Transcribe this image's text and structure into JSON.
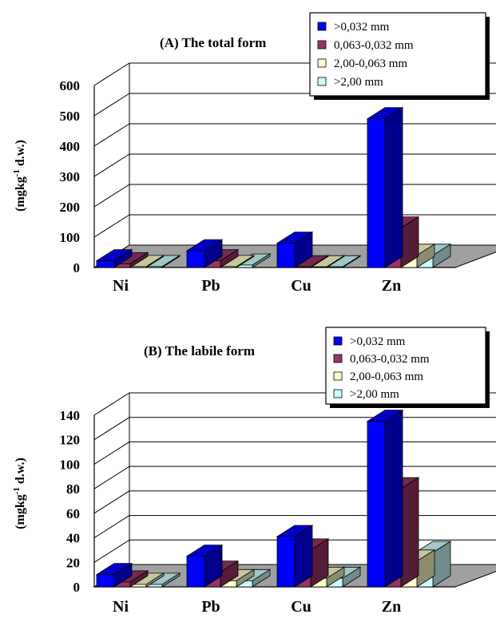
{
  "chart_data": [
    {
      "type": "bar",
      "title": "(A) The total form",
      "ylabel_parts": [
        "(mgkg",
        "-1",
        " d.w.)"
      ],
      "categories": [
        "Ni",
        "Pb",
        "Cu",
        "Zn"
      ],
      "ylim": [
        0,
        600
      ],
      "yticks": [
        "0",
        "100",
        "200",
        "300",
        "400",
        "500",
        "600"
      ],
      "series": [
        {
          "name": ">0,032 mm",
          "color": "#0000ff",
          "values": [
            22,
            55,
            80,
            490
          ]
        },
        {
          "name": "0,063-0,032 mm",
          "color": "#993366",
          "values": [
            12,
            22,
            2,
            130
          ]
        },
        {
          "name": "2,00-0,063 mm",
          "color": "#ffffcc",
          "values": [
            3,
            3,
            2,
            40
          ]
        },
        {
          "name": ">2,00 mm",
          "color": "#ccffff",
          "values": [
            3,
            8,
            2,
            40
          ]
        }
      ],
      "grid": true,
      "legend_position": "top-right"
    },
    {
      "type": "bar",
      "title": "(B) The labile form",
      "ylabel_parts": [
        "(mgkg",
        "-1",
        " d.w.)"
      ],
      "categories": [
        "Ni",
        "Pb",
        "Cu",
        "Zn"
      ],
      "ylim": [
        0,
        140
      ],
      "yticks": [
        "0",
        "20",
        "40",
        "60",
        "80",
        "100",
        "120",
        "140"
      ],
      "series": [
        {
          "name": ">0,032 mm",
          "color": "#0000ff",
          "values": [
            10,
            25,
            41,
            135
          ]
        },
        {
          "name": "0,063-0,032 mm",
          "color": "#993366",
          "values": [
            4,
            12,
            30,
            80
          ]
        },
        {
          "name": "2,00-0,063 mm",
          "color": "#ffffcc",
          "values": [
            2,
            5,
            7,
            21
          ]
        },
        {
          "name": ">2,00 mm",
          "color": "#ccffff",
          "values": [
            2,
            5,
            7,
            28
          ]
        }
      ],
      "grid": true,
      "legend_position": "top-right"
    }
  ]
}
